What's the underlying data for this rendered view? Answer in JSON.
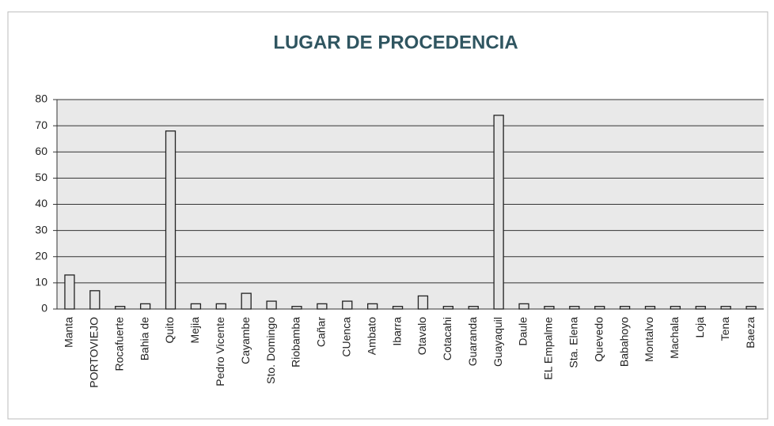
{
  "chart_data": {
    "type": "bar",
    "title": "LUGAR DE PROCEDENCIA",
    "categories": [
      "Manta",
      "PORTOVIEJO",
      "Rocafuerte",
      "Bahia de",
      "Quito",
      "Mejia",
      "Pedro Vicente",
      "Cayambe",
      "Sto. Domingo",
      "Riobamba",
      "Cañar",
      "CUenca",
      "Ambato",
      "Ibarra",
      "Otavalo",
      "Cotacahi",
      "Guaranda",
      "Guayaquil",
      "Daule",
      "EL Empalme",
      "Sta. Elena",
      "Quevedo",
      "Babahoyo",
      "Montalvo",
      "Machala",
      "Loja",
      "Tena",
      "Baeza"
    ],
    "values": [
      13,
      7,
      1,
      2,
      68,
      2,
      2,
      6,
      3,
      1,
      2,
      3,
      2,
      1,
      5,
      1,
      1,
      74,
      2,
      1,
      1,
      1,
      1,
      1,
      1,
      1,
      1,
      1
    ],
    "color": "#e4e4e4",
    "ylim": [
      0,
      80
    ],
    "yticks": [
      0,
      10,
      20,
      30,
      40,
      50,
      60,
      70,
      80
    ],
    "grid": true
  }
}
